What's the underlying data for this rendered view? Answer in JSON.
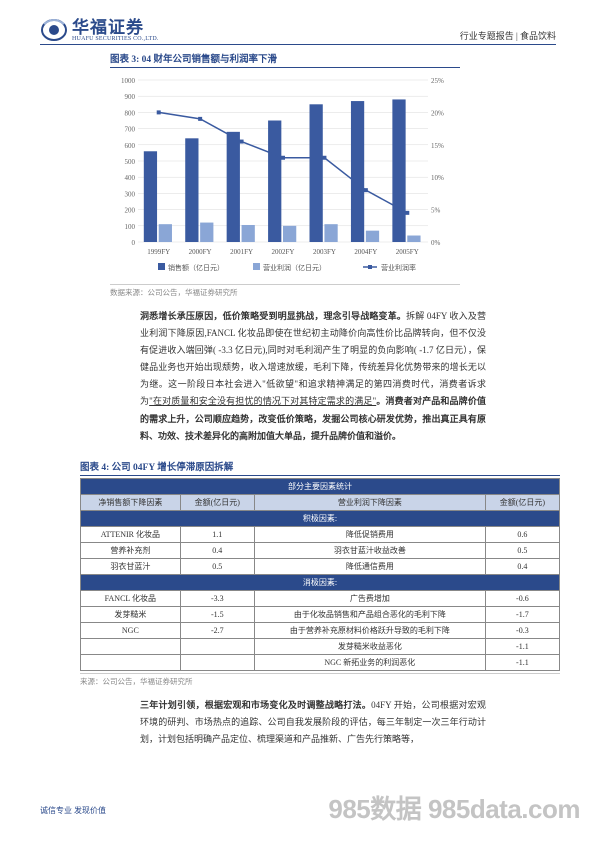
{
  "header": {
    "logo_cn": "华福证券",
    "logo_en": "HUAFU SECURITIES CO.,LTD.",
    "right": "行业专题报告 | 食品饮料"
  },
  "chart3": {
    "title": "图表 3:  04 财年公司销售额与利润率下滑",
    "source": "数据来源：公司公告，华福证券研究所",
    "bg": "#ffffff",
    "grid_color": "#d9d9d9",
    "axis_color": "#bfbfbf",
    "left_ticks": [
      0,
      100,
      200,
      300,
      400,
      500,
      600,
      700,
      800,
      900,
      1000
    ],
    "right_ticks": [
      0,
      5,
      10,
      15,
      20,
      25
    ],
    "right_tick_labels": [
      "0%",
      "5%",
      "10%",
      "15%",
      "20%",
      "25%"
    ],
    "categories": [
      "1999FY",
      "2000FY",
      "2001FY",
      "2002FY",
      "2003FY",
      "2004FY",
      "2005FY"
    ],
    "series": [
      {
        "name": "销售额（亿日元）",
        "color": "#3a5aa0",
        "type": "bar",
        "values": [
          560,
          640,
          680,
          750,
          850,
          870,
          880
        ]
      },
      {
        "name": "营业利润（亿日元）",
        "color": "#8aa6d6",
        "type": "bar",
        "values": [
          110,
          120,
          105,
          100,
          110,
          70,
          40
        ]
      },
      {
        "name": "营业利润率",
        "color": "#3a5aa0",
        "type": "line",
        "values": [
          20,
          19,
          15.5,
          13,
          13,
          8,
          4.5
        ]
      }
    ],
    "legend": [
      "销售额（亿日元）",
      "营业利润（亿日元）",
      "营业利润率"
    ]
  },
  "para1": {
    "lead": "洞悉增长承压原因，低价策略受到明显挑战，理念引导战略变革。",
    "body": "拆解 04FY 收入及营业利润下降原因,FANCL 化妆品即使在世纪初主动降价向高性价比品牌转向，但不仅没有促进收入端回弹( -3.3 亿日元),同时对毛利润产生了明显的负向影响( -1.7 亿日元），保健品业务也开始出现颓势，收入增速放缓，毛利下降，传统差异化优势带来的增长无以为继。这一阶段日本社会进入\"低欲望\"和追求精神满足的第四消费时代，消费者诉求为",
    "underline": "\"在对质量和安全没有担忧的情况下对其特定需求的满足\"",
    "tail": "。消费者对产品和品牌价值的需求上升，公司顺应趋势，改变低价策略，发掘公司核心研发优势，推出真正具有原料、功效、技术差异化的高附加值大单品，提升品牌价值和溢价。"
  },
  "table4": {
    "title": "图表 4:  公司 04FY 增长停滞原因拆解",
    "source": "来源：公司公告，华福证券研究所",
    "h_main": "部分主要因素统计",
    "h_row2": [
      "净销售额下降因素",
      "金额(亿日元)",
      "营业利润下降因素",
      "金额(亿日元)"
    ],
    "cat1": "积极因素:",
    "rows1": [
      [
        "ATTENIR 化妆品",
        "1.1",
        "降低促销费用",
        "0.6"
      ],
      [
        "营养补充剂",
        "0.4",
        "羽衣甘蓝汁收益改善",
        "0.5"
      ],
      [
        "羽衣甘蓝汁",
        "0.5",
        "降低通信费用",
        "0.4"
      ]
    ],
    "cat2": "消极因素:",
    "rows2": [
      [
        "FANCL 化妆品",
        "-3.3",
        "广告费增加",
        "-0.6"
      ],
      [
        "发芽糙米",
        "-1.5",
        "由于化妆品销售和产品组合恶化的毛利下降",
        "-1.7"
      ],
      [
        "NGC",
        "-2.7",
        "由于营养补充原材料价格跃升导致的毛利下降",
        "-0.3"
      ],
      [
        "",
        "",
        "发芽糙米收益恶化",
        "-1.1"
      ],
      [
        "",
        "",
        "NGC 新拓业务的利润恶化",
        "-1.1"
      ]
    ]
  },
  "para2": {
    "lead": "三年计划引领，根据宏观和市场变化及时调整战略打法。",
    "body": "04FY 开始，公司根据对宏观环境的研判、市场热点的追踪、公司自我发展阶段的评估，每三年制定一次三年行动计划，计划包括明确产品定位、梳理渠道和产品推新、广告先行策略等，"
  },
  "footer": {
    "left": "诚信专业  发现价值",
    "watermark": "985数据 985data.com"
  }
}
